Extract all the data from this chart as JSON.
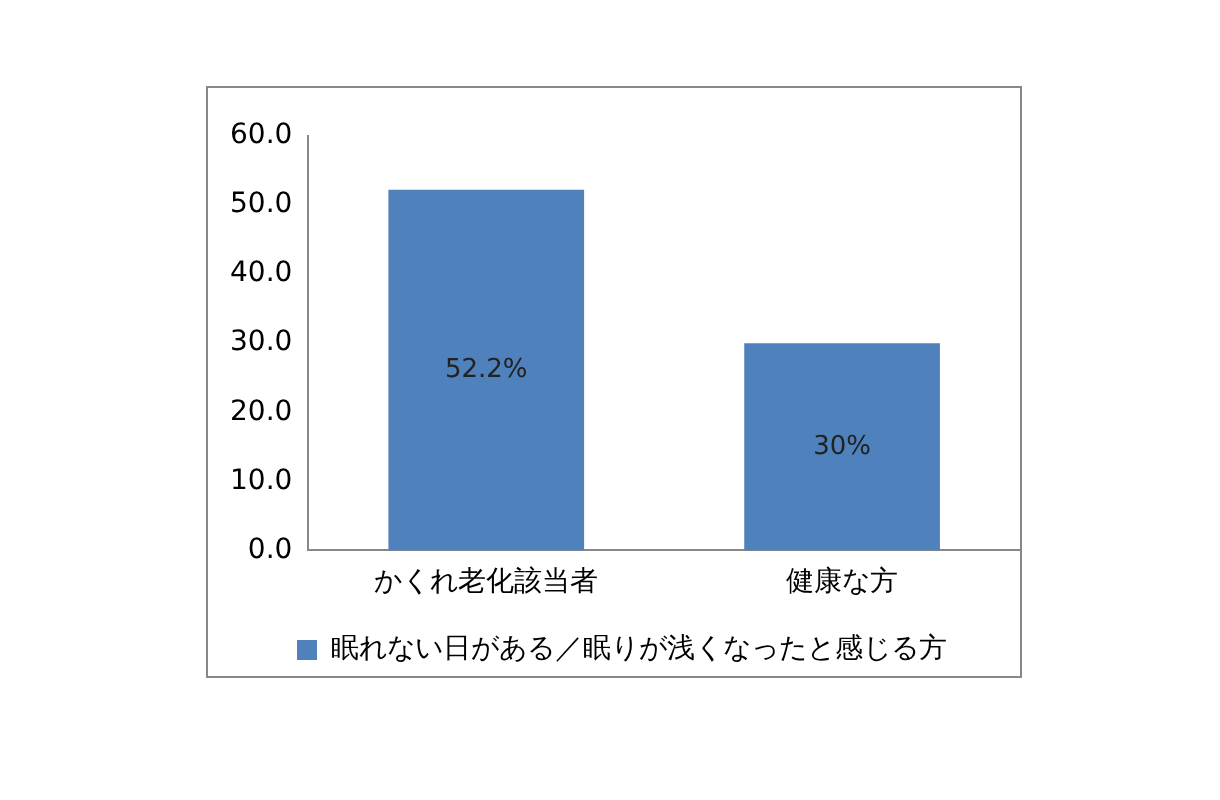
{
  "chart_data": {
    "type": "bar",
    "categories": [
      "かくれ老化該当者",
      "健康な方"
    ],
    "series": [
      {
        "name": "眠れない日がある／眠りが浅くなったと感じる方",
        "color": "#4f81bd",
        "values": [
          52.2,
          30
        ],
        "value_labels": [
          "52.2%",
          "30%"
        ]
      }
    ],
    "ylim": [
      0,
      60
    ],
    "yticks": [
      {
        "value": 0,
        "label": "0.0"
      },
      {
        "value": 10,
        "label": "10.0"
      },
      {
        "value": 20,
        "label": "20.0"
      },
      {
        "value": 30,
        "label": "30.0"
      },
      {
        "value": 40,
        "label": "40.0"
      },
      {
        "value": 50,
        "label": "50.0"
      },
      {
        "value": 60,
        "label": "60.0"
      }
    ],
    "grid": false,
    "legend": "bottom"
  }
}
